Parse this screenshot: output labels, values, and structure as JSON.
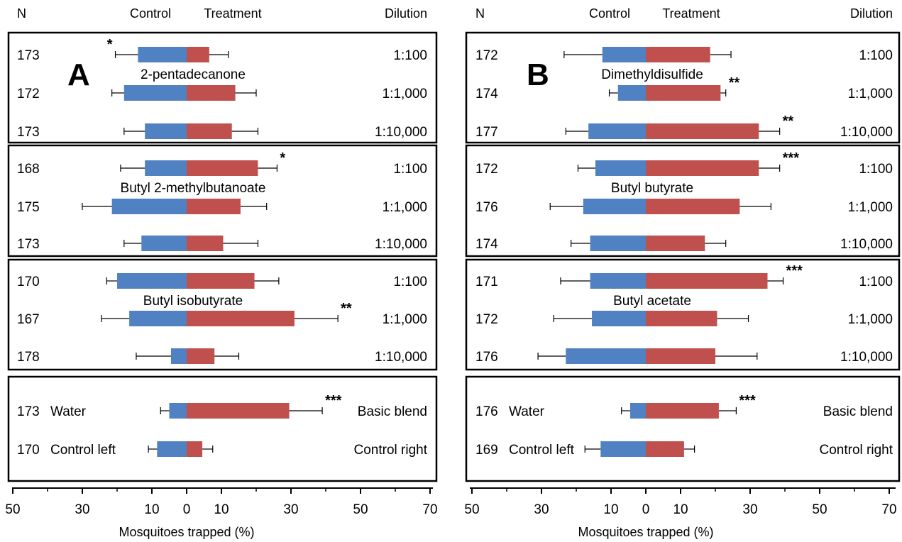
{
  "headers": {
    "n": "N",
    "control": "Control",
    "treatment": "Treatment",
    "dilution": "Dilution"
  },
  "colors": {
    "control": "#4f81c3",
    "treatment": "#c0504d",
    "frame": "#000000"
  },
  "chart_data": [
    {
      "type": "bar",
      "panel_label": "A",
      "xlabel": "Mosquitoes trapped (%)",
      "x_ticks": [
        "50",
        "30",
        "10",
        "0",
        "10",
        "30",
        "50",
        "70"
      ],
      "groups": [
        {
          "compound": "2-pentadecanone",
          "rows": [
            {
              "n": "173",
              "dilution": "1:100",
              "control": 14,
              "treatment": 6.5,
              "ctrl_err": 6.5,
              "treat_err": 5.5,
              "sig": "*",
              "sig_side": "control"
            },
            {
              "n": "172",
              "dilution": "1:1,000",
              "control": 18,
              "treatment": 14,
              "ctrl_err": 3.5,
              "treat_err": 6,
              "sig": "",
              "sig_side": ""
            },
            {
              "n": "173",
              "dilution": "1:10,000",
              "control": 12,
              "treatment": 13,
              "ctrl_err": 6,
              "treat_err": 7.5,
              "sig": "",
              "sig_side": ""
            }
          ]
        },
        {
          "compound": "Butyl 2-methylbutanoate",
          "rows": [
            {
              "n": "168",
              "dilution": "1:100",
              "control": 12,
              "treatment": 20.5,
              "ctrl_err": 7,
              "treat_err": 5.5,
              "sig": "*",
              "sig_side": "treatment"
            },
            {
              "n": "175",
              "dilution": "1:1,000",
              "control": 21.5,
              "treatment": 15.5,
              "ctrl_err": 8.5,
              "treat_err": 7.5,
              "sig": "",
              "sig_side": ""
            },
            {
              "n": "173",
              "dilution": "1:10,000",
              "control": 13,
              "treatment": 10.5,
              "ctrl_err": 5,
              "treat_err": 10,
              "sig": "",
              "sig_side": ""
            }
          ]
        },
        {
          "compound": "Butyl isobutyrate",
          "rows": [
            {
              "n": "170",
              "dilution": "1:100",
              "control": 20,
              "treatment": 19.5,
              "ctrl_err": 3,
              "treat_err": 7,
              "sig": "",
              "sig_side": ""
            },
            {
              "n": "167",
              "dilution": "1:1,000",
              "control": 16.5,
              "treatment": 31,
              "ctrl_err": 8,
              "treat_err": 12.5,
              "sig": "**",
              "sig_side": "treatment"
            },
            {
              "n": "178",
              "dilution": "1:10,000",
              "control": 4.5,
              "treatment": 8,
              "ctrl_err": 10,
              "treat_err": 7
            }
          ]
        }
      ],
      "reference": {
        "left_label": "Water",
        "right_label": "Basic blend",
        "left2_label": "Control left",
        "right2_label": "Control right",
        "rows": [
          {
            "n": "173",
            "control": 5,
            "treatment": 29.5,
            "ctrl_err": 2.5,
            "treat_err": 9.5,
            "sig": "***",
            "sig_side": "treatment"
          },
          {
            "n": "170",
            "control": 8.5,
            "treatment": 4.5,
            "ctrl_err": 2.5,
            "treat_err": 3,
            "sig": "",
            "sig_side": ""
          }
        ]
      }
    },
    {
      "type": "bar",
      "panel_label": "B",
      "xlabel": "Mosquitoes trapped (%)",
      "x_ticks": [
        "50",
        "30",
        "10",
        "0",
        "10",
        "30",
        "50",
        "70"
      ],
      "groups": [
        {
          "compound": "Dimethyldisulfide",
          "rows": [
            {
              "n": "172",
              "dilution": "1:100",
              "control": 12.5,
              "treatment": 18.5,
              "ctrl_err": 11,
              "treat_err": 6,
              "sig": "",
              "sig_side": ""
            },
            {
              "n": "174",
              "dilution": "1:1,000",
              "control": 8,
              "treatment": 21.5,
              "ctrl_err": 2.5,
              "treat_err": 1.5,
              "sig": "**",
              "sig_side": "treatment"
            },
            {
              "n": "177",
              "dilution": "1:10,000",
              "control": 16.5,
              "treatment": 32.5,
              "ctrl_err": 6.5,
              "treat_err": 6,
              "sig": "**",
              "sig_side": "treatment"
            }
          ]
        },
        {
          "compound": "Butyl butyrate",
          "rows": [
            {
              "n": "172",
              "dilution": "1:100",
              "control": 14.5,
              "treatment": 32.5,
              "ctrl_err": 5,
              "treat_err": 6,
              "sig": "***",
              "sig_side": "treatment"
            },
            {
              "n": "176",
              "dilution": "1:1,000",
              "control": 18,
              "treatment": 27,
              "ctrl_err": 9.5,
              "treat_err": 9,
              "sig": "",
              "sig_side": ""
            },
            {
              "n": "174",
              "dilution": "1:10,000",
              "control": 16,
              "treatment": 17,
              "ctrl_err": 5.5,
              "treat_err": 6,
              "sig": "",
              "sig_side": ""
            }
          ]
        },
        {
          "compound": "Butyl acetate",
          "rows": [
            {
              "n": "171",
              "dilution": "1:100",
              "control": 16,
              "treatment": 35,
              "ctrl_err": 8.5,
              "treat_err": 4.5,
              "sig": "***",
              "sig_side": "treatment"
            },
            {
              "n": "172",
              "dilution": "1:1,000",
              "control": 15.5,
              "treatment": 20.5,
              "ctrl_err": 11,
              "treat_err": 9,
              "sig": "",
              "sig_side": ""
            },
            {
              "n": "176",
              "dilution": "1:10,000",
              "control": 23,
              "treatment": 20,
              "ctrl_err": 8,
              "treat_err": 12,
              "sig": "",
              "sig_side": ""
            }
          ]
        }
      ],
      "reference": {
        "left_label": "Water",
        "right_label": "Basic blend",
        "left2_label": "Control left",
        "right2_label": "Control right",
        "rows": [
          {
            "n": "176",
            "control": 4.5,
            "treatment": 21,
            "ctrl_err": 2.5,
            "treat_err": 5,
            "sig": "***",
            "sig_side": "treatment"
          },
          {
            "n": "169",
            "control": 13,
            "treatment": 11,
            "ctrl_err": 4.5,
            "treat_err": 3,
            "sig": "",
            "sig_side": ""
          }
        ]
      }
    }
  ]
}
